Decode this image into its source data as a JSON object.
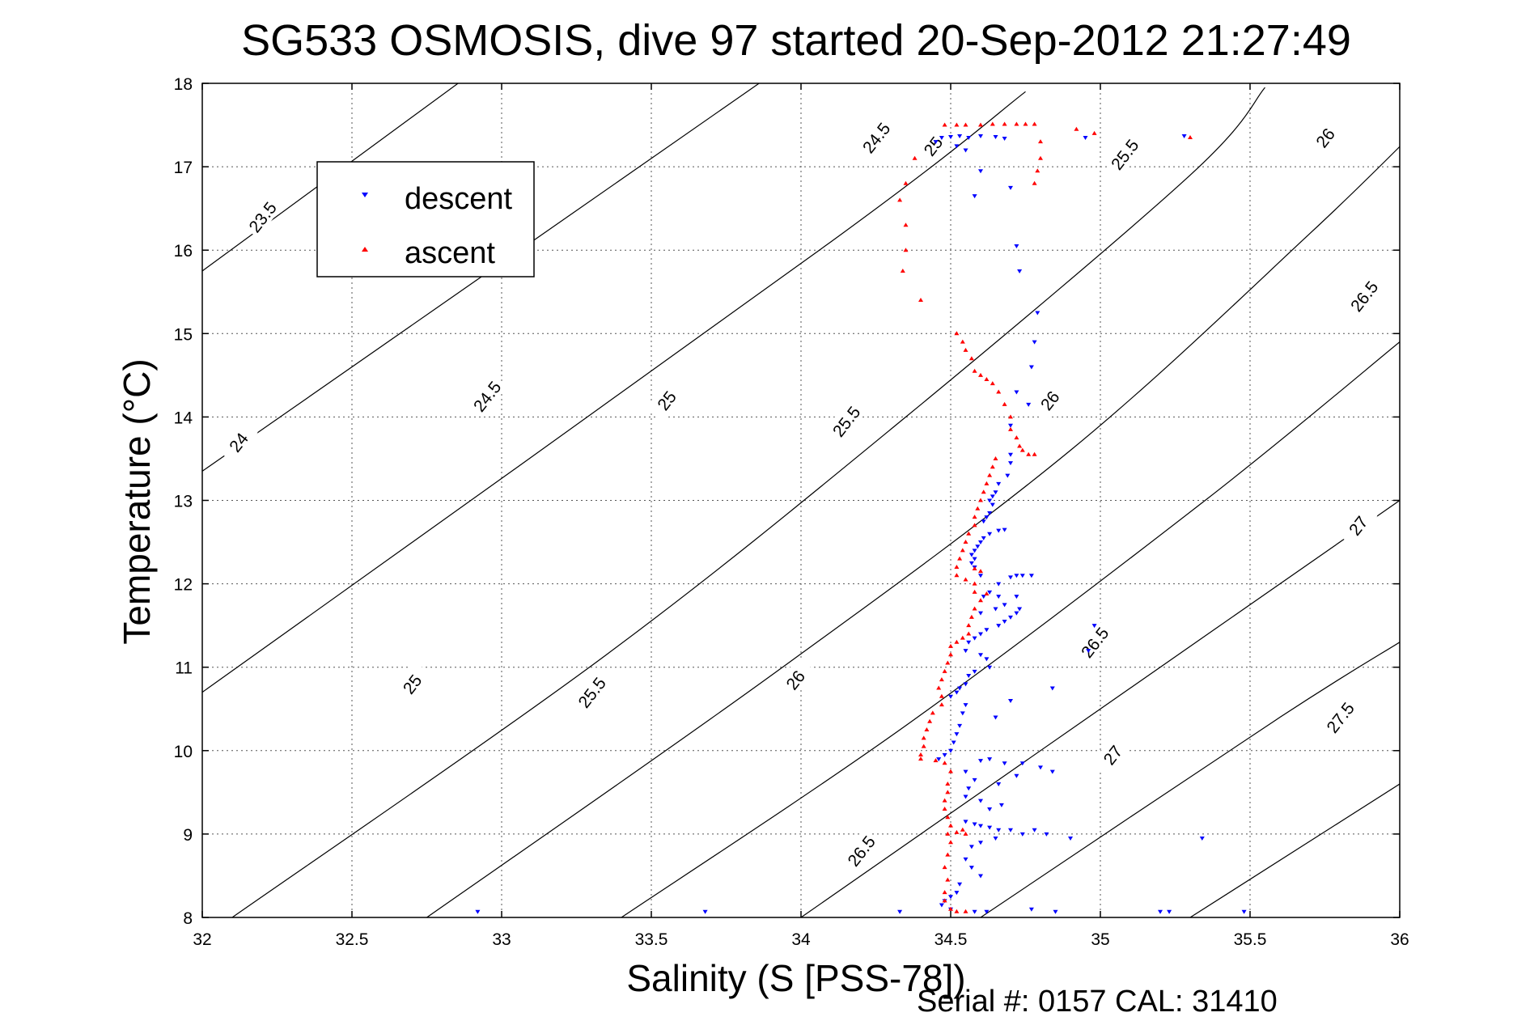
{
  "chart_data": {
    "type": "scatter",
    "title": "SG533 OSMOSIS, dive 97 started 20-Sep-2012 21:27:49",
    "xlabel": "Salinity (S [PSS-78])",
    "ylabel": "Temperature (°C)",
    "xlim": [
      32,
      36
    ],
    "ylim": [
      8,
      18
    ],
    "xticks": [
      "32",
      "32.5",
      "33",
      "33.5",
      "34",
      "34.5",
      "35",
      "35.5",
      "36"
    ],
    "yticks": [
      "8",
      "9",
      "10",
      "11",
      "12",
      "13",
      "14",
      "15",
      "16",
      "17",
      "18"
    ],
    "grid": true,
    "legend_position": "top-left",
    "footer": "Serial #: 0157  CAL: 31410",
    "contours": [
      {
        "label": "23.5",
        "points": [
          [
            32.0,
            15.75
          ],
          [
            33.5,
            19.7
          ]
        ]
      },
      {
        "label": "24",
        "points": [
          [
            32.0,
            13.35
          ],
          [
            34.1,
            18.6
          ]
        ]
      },
      {
        "label": "24.5",
        "points": [
          [
            32.0,
            10.7
          ],
          [
            34.1,
            16.1
          ],
          [
            34.75,
            17.9
          ]
        ]
      },
      {
        "label": "25",
        "points": [
          [
            32.1,
            8.0
          ],
          [
            33.35,
            11.15
          ],
          [
            34.35,
            14.0
          ],
          [
            35.3,
            16.9
          ],
          [
            35.55,
            17.95
          ]
        ]
      },
      {
        "label": "25.5",
        "points": [
          [
            32.75,
            8.0
          ],
          [
            33.9,
            10.9
          ],
          [
            34.9,
            13.6
          ],
          [
            35.7,
            16.2
          ],
          [
            36.1,
            17.6
          ]
        ]
      },
      {
        "label": "26",
        "points": [
          [
            33.4,
            8.0
          ],
          [
            34.35,
            10.3
          ],
          [
            35.35,
            13.0
          ],
          [
            36.0,
            14.9
          ]
        ]
      },
      {
        "label": "26.5",
        "points": [
          [
            34.0,
            8.0
          ],
          [
            35.0,
            10.5
          ],
          [
            36.0,
            13.0
          ]
        ]
      },
      {
        "label": "27",
        "points": [
          [
            34.6,
            8.0
          ],
          [
            35.6,
            10.4
          ],
          [
            36.0,
            11.3
          ]
        ]
      },
      {
        "label": "27.5",
        "points": [
          [
            35.3,
            8.0
          ],
          [
            36.0,
            9.6
          ]
        ]
      }
    ],
    "contour_labels": [
      {
        "text": "23.5",
        "x": 32.2,
        "y": 16.4
      },
      {
        "text": "24",
        "x": 32.12,
        "y": 13.7
      },
      {
        "text": "24.5",
        "x": 32.95,
        "y": 14.25
      },
      {
        "text": "24.5",
        "x": 34.25,
        "y": 17.35
      },
      {
        "text": "25",
        "x": 32.7,
        "y": 10.8
      },
      {
        "text": "25",
        "x": 33.55,
        "y": 14.2
      },
      {
        "text": "25",
        "x": 34.44,
        "y": 17.25
      },
      {
        "text": "25.5",
        "x": 33.3,
        "y": 10.7
      },
      {
        "text": "25.5",
        "x": 34.15,
        "y": 13.95
      },
      {
        "text": "25.5",
        "x": 35.08,
        "y": 17.15
      },
      {
        "text": "26",
        "x": 33.98,
        "y": 10.85
      },
      {
        "text": "26",
        "x": 34.83,
        "y": 14.2
      },
      {
        "text": "26",
        "x": 35.75,
        "y": 17.35
      },
      {
        "text": "26.5",
        "x": 34.2,
        "y": 8.8
      },
      {
        "text": "26.5",
        "x": 34.98,
        "y": 11.3
      },
      {
        "text": "26.5",
        "x": 35.88,
        "y": 15.45
      },
      {
        "text": "27",
        "x": 35.04,
        "y": 9.95
      },
      {
        "text": "27",
        "x": 35.86,
        "y": 12.7
      },
      {
        "text": "27.5",
        "x": 35.8,
        "y": 10.4
      }
    ],
    "series": [
      {
        "name": "descent",
        "color": "#0000ff",
        "marker": "triangle-down",
        "points": [
          [
            34.47,
            17.35
          ],
          [
            34.5,
            17.36
          ],
          [
            34.53,
            17.37
          ],
          [
            34.56,
            17.35
          ],
          [
            34.6,
            17.37
          ],
          [
            34.65,
            17.36
          ],
          [
            34.68,
            17.34
          ],
          [
            34.95,
            17.35
          ],
          [
            35.28,
            17.37
          ],
          [
            34.45,
            17.3
          ],
          [
            34.52,
            17.25
          ],
          [
            34.55,
            17.2
          ],
          [
            34.6,
            16.95
          ],
          [
            34.7,
            16.75
          ],
          [
            34.58,
            16.65
          ],
          [
            34.72,
            16.05
          ],
          [
            34.73,
            15.75
          ],
          [
            34.79,
            15.25
          ],
          [
            34.78,
            14.9
          ],
          [
            34.77,
            14.6
          ],
          [
            34.76,
            14.15
          ],
          [
            34.72,
            14.3
          ],
          [
            34.7,
            13.9
          ],
          [
            34.7,
            13.55
          ],
          [
            34.7,
            13.45
          ],
          [
            34.69,
            13.3
          ],
          [
            34.66,
            13.2
          ],
          [
            34.65,
            13.1
          ],
          [
            34.64,
            13.05
          ],
          [
            34.63,
            13.0
          ],
          [
            34.64,
            12.95
          ],
          [
            34.63,
            12.85
          ],
          [
            34.62,
            12.8
          ],
          [
            34.61,
            12.75
          ],
          [
            34.68,
            12.65
          ],
          [
            34.66,
            12.64
          ],
          [
            34.63,
            12.6
          ],
          [
            34.61,
            12.55
          ],
          [
            34.6,
            12.5
          ],
          [
            34.59,
            12.45
          ],
          [
            34.58,
            12.4
          ],
          [
            34.57,
            12.35
          ],
          [
            34.58,
            12.3
          ],
          [
            34.57,
            12.25
          ],
          [
            34.58,
            12.2
          ],
          [
            34.6,
            12.1
          ],
          [
            34.72,
            12.1
          ],
          [
            34.74,
            12.1
          ],
          [
            34.77,
            12.1
          ],
          [
            34.7,
            12.08
          ],
          [
            34.66,
            12.0
          ],
          [
            34.63,
            11.9
          ],
          [
            34.61,
            11.85
          ],
          [
            34.66,
            11.85
          ],
          [
            34.72,
            11.85
          ],
          [
            34.68,
            11.75
          ],
          [
            34.65,
            11.7
          ],
          [
            34.6,
            11.65
          ],
          [
            34.73,
            11.7
          ],
          [
            34.72,
            11.65
          ],
          [
            34.7,
            11.6
          ],
          [
            34.68,
            11.55
          ],
          [
            34.66,
            11.5
          ],
          [
            34.62,
            11.45
          ],
          [
            34.6,
            11.4
          ],
          [
            34.58,
            11.35
          ],
          [
            34.56,
            11.3
          ],
          [
            34.55,
            11.2
          ],
          [
            34.6,
            11.15
          ],
          [
            34.62,
            11.1
          ],
          [
            34.98,
            11.5
          ],
          [
            34.96,
            11.2
          ],
          [
            34.63,
            11.0
          ],
          [
            34.58,
            10.95
          ],
          [
            34.56,
            10.9
          ],
          [
            34.55,
            10.8
          ],
          [
            34.53,
            10.75
          ],
          [
            34.52,
            10.7
          ],
          [
            34.5,
            10.65
          ],
          [
            34.55,
            10.55
          ],
          [
            34.54,
            10.45
          ],
          [
            34.53,
            10.3
          ],
          [
            34.52,
            10.2
          ],
          [
            34.51,
            10.1
          ],
          [
            34.84,
            10.75
          ],
          [
            34.7,
            10.6
          ],
          [
            34.65,
            10.4
          ],
          [
            34.5,
            10.0
          ],
          [
            34.48,
            9.95
          ],
          [
            34.46,
            9.9
          ],
          [
            34.6,
            9.88
          ],
          [
            34.63,
            9.9
          ],
          [
            34.68,
            9.85
          ],
          [
            34.74,
            9.85
          ],
          [
            34.8,
            9.8
          ],
          [
            34.84,
            9.75
          ],
          [
            34.55,
            9.75
          ],
          [
            34.58,
            9.65
          ],
          [
            34.56,
            9.55
          ],
          [
            34.55,
            9.45
          ],
          [
            34.6,
            9.4
          ],
          [
            34.66,
            9.6
          ],
          [
            34.72,
            9.7
          ],
          [
            34.67,
            9.35
          ],
          [
            34.63,
            9.3
          ],
          [
            34.55,
            9.15
          ],
          [
            34.58,
            9.12
          ],
          [
            34.6,
            9.1
          ],
          [
            34.63,
            9.08
          ],
          [
            34.66,
            9.05
          ],
          [
            34.7,
            9.05
          ],
          [
            34.74,
            9.0
          ],
          [
            34.78,
            9.05
          ],
          [
            34.82,
            9.0
          ],
          [
            34.9,
            8.95
          ],
          [
            35.34,
            8.95
          ],
          [
            34.65,
            8.95
          ],
          [
            34.6,
            8.9
          ],
          [
            34.57,
            8.85
          ],
          [
            34.55,
            8.7
          ],
          [
            34.57,
            8.6
          ],
          [
            34.6,
            8.5
          ],
          [
            34.53,
            8.4
          ],
          [
            34.52,
            8.3
          ],
          [
            34.5,
            8.25
          ],
          [
            34.48,
            8.2
          ],
          [
            34.47,
            8.15
          ],
          [
            34.5,
            8.1
          ],
          [
            32.92,
            8.07
          ],
          [
            33.68,
            8.07
          ],
          [
            34.33,
            8.07
          ],
          [
            34.58,
            8.07
          ],
          [
            34.62,
            8.07
          ],
          [
            34.77,
            8.1
          ],
          [
            34.85,
            8.07
          ],
          [
            35.2,
            8.07
          ],
          [
            35.23,
            8.07
          ],
          [
            35.48,
            8.07
          ]
        ]
      },
      {
        "name": "ascent",
        "color": "#ff0000",
        "marker": "triangle-up",
        "points": [
          [
            34.48,
            17.5
          ],
          [
            34.52,
            17.5
          ],
          [
            34.55,
            17.5
          ],
          [
            34.6,
            17.5
          ],
          [
            34.64,
            17.51
          ],
          [
            34.68,
            17.51
          ],
          [
            34.72,
            17.51
          ],
          [
            34.75,
            17.51
          ],
          [
            34.78,
            17.51
          ],
          [
            34.92,
            17.45
          ],
          [
            34.98,
            17.4
          ],
          [
            35.3,
            17.35
          ],
          [
            34.8,
            17.3
          ],
          [
            34.8,
            17.1
          ],
          [
            34.79,
            16.95
          ],
          [
            34.78,
            16.8
          ],
          [
            34.38,
            17.1
          ],
          [
            34.35,
            16.8
          ],
          [
            34.33,
            16.6
          ],
          [
            34.35,
            16.3
          ],
          [
            34.35,
            16.0
          ],
          [
            34.34,
            15.75
          ],
          [
            34.4,
            15.4
          ],
          [
            34.52,
            15.0
          ],
          [
            34.54,
            14.9
          ],
          [
            34.55,
            14.8
          ],
          [
            34.57,
            14.7
          ],
          [
            34.58,
            14.55
          ],
          [
            34.6,
            14.5
          ],
          [
            34.62,
            14.45
          ],
          [
            34.64,
            14.4
          ],
          [
            34.66,
            14.3
          ],
          [
            34.68,
            14.15
          ],
          [
            34.7,
            14.0
          ],
          [
            34.7,
            13.85
          ],
          [
            34.72,
            13.75
          ],
          [
            34.73,
            13.65
          ],
          [
            34.74,
            13.6
          ],
          [
            34.76,
            13.55
          ],
          [
            34.78,
            13.55
          ],
          [
            34.65,
            13.5
          ],
          [
            34.64,
            13.4
          ],
          [
            34.63,
            13.3
          ],
          [
            34.62,
            13.2
          ],
          [
            34.61,
            13.1
          ],
          [
            34.6,
            13.0
          ],
          [
            34.59,
            12.9
          ],
          [
            34.58,
            12.8
          ],
          [
            34.58,
            12.7
          ],
          [
            34.56,
            12.6
          ],
          [
            34.55,
            12.5
          ],
          [
            34.54,
            12.4
          ],
          [
            34.53,
            12.3
          ],
          [
            34.52,
            12.2
          ],
          [
            34.52,
            12.1
          ],
          [
            34.55,
            12.05
          ],
          [
            34.58,
            12.18
          ],
          [
            34.6,
            12.15
          ],
          [
            34.58,
            12.0
          ],
          [
            34.58,
            11.9
          ],
          [
            34.62,
            11.88
          ],
          [
            34.6,
            11.8
          ],
          [
            34.58,
            11.7
          ],
          [
            34.57,
            11.6
          ],
          [
            34.56,
            11.5
          ],
          [
            34.56,
            11.4
          ],
          [
            34.54,
            11.35
          ],
          [
            34.52,
            11.3
          ],
          [
            34.5,
            11.25
          ],
          [
            34.5,
            11.15
          ],
          [
            34.49,
            11.05
          ],
          [
            34.48,
            10.95
          ],
          [
            34.47,
            10.85
          ],
          [
            34.46,
            10.75
          ],
          [
            34.47,
            10.65
          ],
          [
            34.47,
            10.55
          ],
          [
            34.44,
            10.45
          ],
          [
            34.43,
            10.35
          ],
          [
            34.42,
            10.25
          ],
          [
            34.41,
            10.15
          ],
          [
            34.41,
            10.05
          ],
          [
            34.4,
            9.95
          ],
          [
            34.4,
            9.9
          ],
          [
            34.45,
            9.88
          ],
          [
            34.48,
            9.85
          ],
          [
            34.5,
            9.75
          ],
          [
            34.49,
            9.6
          ],
          [
            34.49,
            9.5
          ],
          [
            34.48,
            9.4
          ],
          [
            34.48,
            9.3
          ],
          [
            34.49,
            9.2
          ],
          [
            34.5,
            9.1
          ],
          [
            34.49,
            9.0
          ],
          [
            34.52,
            9.02
          ],
          [
            34.54,
            9.05
          ],
          [
            34.55,
            9.0
          ],
          [
            34.5,
            8.9
          ],
          [
            34.49,
            8.75
          ],
          [
            34.48,
            8.6
          ],
          [
            34.49,
            8.45
          ],
          [
            34.48,
            8.3
          ],
          [
            34.48,
            8.2
          ],
          [
            34.5,
            8.1
          ],
          [
            34.52,
            8.07
          ],
          [
            34.55,
            8.07
          ]
        ]
      }
    ]
  }
}
